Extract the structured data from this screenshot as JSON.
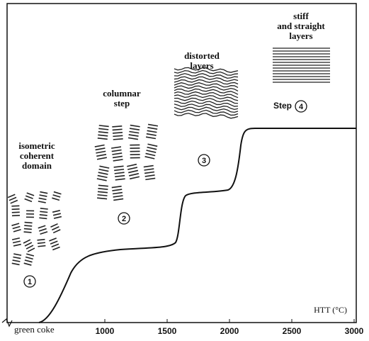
{
  "steps": [
    {
      "number": 1,
      "label": [
        "isometric",
        "coherent",
        "domain"
      ]
    },
    {
      "number": 2,
      "label": [
        "columnar",
        "step"
      ]
    },
    {
      "number": 3,
      "label": [
        "distorted",
        "layers"
      ]
    },
    {
      "number": 4,
      "prefix": "Step",
      "label": [
        "stiff",
        "and straight",
        "layers"
      ]
    }
  ],
  "axis": {
    "label": "HTT (°C)",
    "start_label": "green coke",
    "xlim": [
      216,
      3000
    ],
    "ticks": [
      1000,
      1500,
      2000,
      2500,
      3000
    ]
  }
}
